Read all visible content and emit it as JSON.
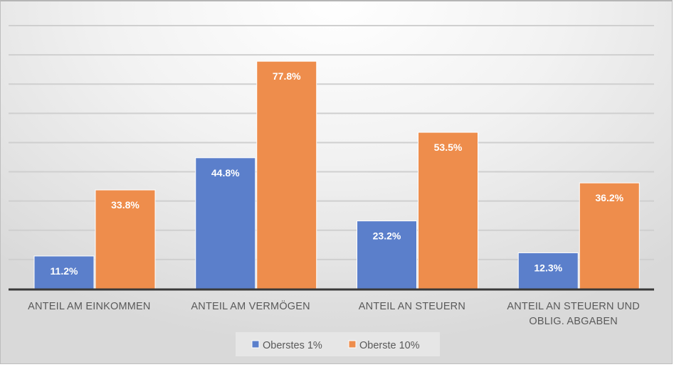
{
  "chart_data": {
    "type": "bar",
    "title": "",
    "xlabel": "",
    "ylabel": "",
    "ylim": [
      0,
      90
    ],
    "grid": true,
    "y_gridline_step": 10,
    "legend_placement": "bottom",
    "categories": [
      [
        "ANTEIL AM EINKOMMEN"
      ],
      [
        "ANTEIL AM VERMÖGEN"
      ],
      [
        "ANTEIL AN STEUERN"
      ],
      [
        "ANTEIL AN STEUERN UND",
        "OBLIG. ABGABEN"
      ]
    ],
    "series": [
      {
        "name": "Oberstes 1%",
        "color": "#5b7fcb",
        "values": [
          11.2,
          44.8,
          23.2,
          12.3
        ],
        "labels": [
          "11.2%",
          "44.8%",
          "23.2%",
          "12.3%"
        ]
      },
      {
        "name": "Oberste 10%",
        "color": "#ee8d4c",
        "values": [
          33.8,
          77.8,
          53.5,
          36.2
        ],
        "labels": [
          "33.8%",
          "77.8%",
          "53.5%",
          "36.2%"
        ]
      }
    ]
  }
}
